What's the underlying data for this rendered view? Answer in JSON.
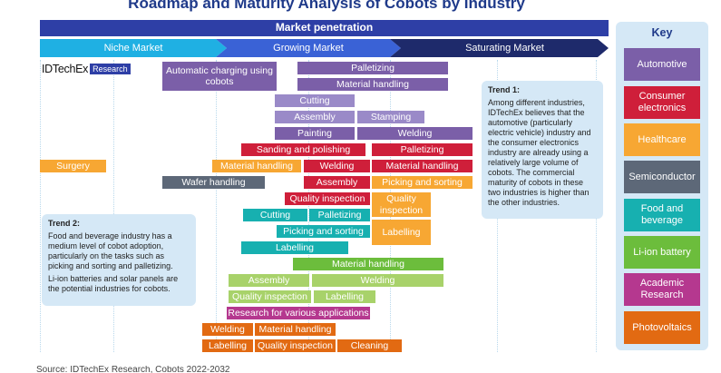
{
  "title": "Roadmap and Maturity Analysis of Cobots by Industry",
  "market_penetration": "Market penetration",
  "stages": [
    "Niche Market",
    "Growing Market",
    "Saturating Market"
  ],
  "logo": {
    "name": "IDTechEx",
    "tag": "Research"
  },
  "colors": {
    "automotive": "#7b5fa8",
    "consumer_electronics": "#cf1f3a",
    "healthcare": "#f7a733",
    "semiconductor": "#5d6878",
    "food_beverage": "#17b0b0",
    "li_ion_battery": "#6cbd3c",
    "academic_research": "#b5388f",
    "photovoltaics": "#e26a12"
  },
  "tasks": [
    {
      "label": "Automatic charging using cobots",
      "category": "automotive"
    },
    {
      "label": "Palletizing",
      "category": "automotive"
    },
    {
      "label": "Material handling",
      "category": "automotive"
    },
    {
      "label": "Cutting",
      "category": "automotive"
    },
    {
      "label": "Assembly",
      "category": "automotive"
    },
    {
      "label": "Stamping",
      "category": "automotive"
    },
    {
      "label": "Painting",
      "category": "automotive"
    },
    {
      "label": "Welding",
      "category": "automotive"
    },
    {
      "label": "Sanding and polishing",
      "category": "consumer_electronics"
    },
    {
      "label": "Palletizing",
      "category": "consumer_electronics"
    },
    {
      "label": "Surgery",
      "category": "healthcare"
    },
    {
      "label": "Material handling",
      "category": "healthcare"
    },
    {
      "label": "Welding",
      "category": "consumer_electronics"
    },
    {
      "label": "Material handling",
      "category": "consumer_electronics"
    },
    {
      "label": "Wafer handling",
      "category": "semiconductor"
    },
    {
      "label": "Assembly",
      "category": "consumer_electronics"
    },
    {
      "label": "Picking and sorting",
      "category": "healthcare"
    },
    {
      "label": "Quality inspection",
      "category": "consumer_electronics"
    },
    {
      "label": "Quality inspection",
      "category": "healthcare"
    },
    {
      "label": "Cutting",
      "category": "food_beverage"
    },
    {
      "label": "Palletizing",
      "category": "food_beverage"
    },
    {
      "label": "Picking and sorting",
      "category": "food_beverage"
    },
    {
      "label": "Labelling",
      "category": "healthcare"
    },
    {
      "label": "Labelling",
      "category": "food_beverage"
    },
    {
      "label": "Material handling",
      "category": "li_ion_battery"
    },
    {
      "label": "Assembly",
      "category": "li_ion_battery"
    },
    {
      "label": "Welding",
      "category": "li_ion_battery"
    },
    {
      "label": "Quality inspection",
      "category": "li_ion_battery"
    },
    {
      "label": "Labelling",
      "category": "li_ion_battery"
    },
    {
      "label": "Research for various applications",
      "category": "academic_research"
    },
    {
      "label": "Welding",
      "category": "photovoltaics"
    },
    {
      "label": "Material handling",
      "category": "photovoltaics"
    },
    {
      "label": "Labelling",
      "category": "photovoltaics"
    },
    {
      "label": "Quality inspection",
      "category": "photovoltaics"
    },
    {
      "label": "Cleaning",
      "category": "photovoltaics"
    }
  ],
  "trend1": {
    "title": "Trend 1:",
    "text": "Among different industries, IDTechEx believes that the automotive (particularly electric vehicle) industry and the consumer electronics industry are already using a relatively large volume of cobots. The commercial maturity of cobots in these two industries is higher than the other industries."
  },
  "trend2": {
    "title": "Trend 2:",
    "text1": "Food and beverage industry has a medium level of cobot adoption, particularly on the tasks such as picking and sorting and palletizing.",
    "text2": "Li-ion batteries and solar panels are the potential industries for cobots."
  },
  "key": {
    "title": "Key",
    "items": [
      {
        "label": "Automotive",
        "color": "#7b5fa8"
      },
      {
        "label": "Consumer electronics",
        "color": "#cf1f3a"
      },
      {
        "label": "Healthcare",
        "color": "#f7a733"
      },
      {
        "label": "Semiconductor",
        "color": "#5d6878"
      },
      {
        "label": "Food and beverage",
        "color": "#17b0b0"
      },
      {
        "label": "Li-ion battery",
        "color": "#6cbd3c"
      },
      {
        "label": "Academic Research",
        "color": "#b5388f"
      },
      {
        "label": "Photovoltaics",
        "color": "#e26a12"
      }
    ]
  },
  "footer": "Source: IDTechEx Research, Cobots 2022-2032"
}
